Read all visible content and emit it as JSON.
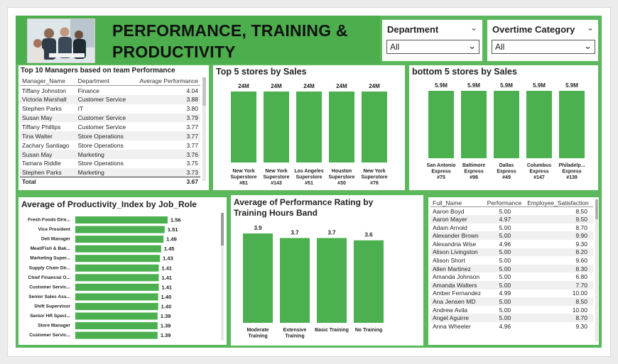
{
  "header": {
    "title_line1": "PERFORMANCE, TRAINING &",
    "title_line2": "PRODUCTIVITY"
  },
  "slicers": {
    "department": {
      "label": "Department",
      "value": "All"
    },
    "overtime": {
      "label": "Overtime Category",
      "value": "All"
    }
  },
  "managers": {
    "title": "Top 10 Managers based on team Performance",
    "columns": [
      "Manager_Name",
      "Department",
      "Average Performance"
    ],
    "rows": [
      [
        "Tiffany Johnston",
        "Finance",
        "4.04"
      ],
      [
        "Victoria Marshall",
        "Customer Service",
        "3.88"
      ],
      [
        "Stephen Parks",
        "IT",
        "3.80"
      ],
      [
        "Susan May",
        "Customer Service",
        "3.79"
      ],
      [
        "Tiffany Phillips",
        "Customer Service",
        "3.77"
      ],
      [
        "Tina Walter",
        "Store Operations",
        "3.77"
      ],
      [
        "Zachary Santiago",
        "Store Operations",
        "3.77"
      ],
      [
        "Susan May",
        "Marketing",
        "3.76"
      ],
      [
        "Tamara Riddle",
        "Store Operations",
        "3.75"
      ],
      [
        "Stephen Parks",
        "Marketing",
        "3.73"
      ]
    ],
    "total_label": "Total",
    "total_value": "3.67"
  },
  "employees": {
    "columns": [
      "Full_Name",
      "Performance",
      "Employee_Satisfaction"
    ],
    "rows": [
      [
        "Aaron Boyd",
        "5.00",
        "8.50"
      ],
      [
        "Aaron Mayer",
        "4.97",
        "9.50"
      ],
      [
        "Adam Arnold",
        "5.00",
        "8.70"
      ],
      [
        "Alexander Brown",
        "5.00",
        "9.90"
      ],
      [
        "Alexandria Wise",
        "4.96",
        "9.30"
      ],
      [
        "Alison Livingston",
        "5.00",
        "8.20"
      ],
      [
        "Alison Short",
        "5.00",
        "9.60"
      ],
      [
        "Allen Martinez",
        "5.00",
        "8.30"
      ],
      [
        "Amanda Johnson",
        "5.00",
        "6.80"
      ],
      [
        "Amanda Walters",
        "5.00",
        "7.70"
      ],
      [
        "Amber Fernandez",
        "4.99",
        "10.00"
      ],
      [
        "Ana Jensen MD",
        "5.00",
        "8.50"
      ],
      [
        "Andrew Avila",
        "5.00",
        "10.00"
      ],
      [
        "Angel Aguirre",
        "5.00",
        "8.70"
      ],
      [
        "Anna Wheeler",
        "4.96",
        "9.30"
      ]
    ]
  },
  "chart_data": [
    {
      "id": "top5",
      "type": "bar",
      "title": "Top 5 stores by Sales",
      "categories": [
        "New York Superstore #81",
        "New York Superstore #143",
        "Los Angeles Superstore #51",
        "Houston Superstore #30",
        "New York Superstore #76"
      ],
      "category_lines": [
        [
          "New York",
          "Superstore",
          "#81"
        ],
        [
          "New York",
          "Superstore",
          "#143"
        ],
        [
          "Los Angeles",
          "Superstore",
          "#51"
        ],
        [
          "Houston",
          "Superstore",
          "#30"
        ],
        [
          "New York",
          "Superstore",
          "#76"
        ]
      ],
      "values": [
        24,
        24,
        24,
        24,
        24
      ],
      "labels": [
        "24M",
        "24M",
        "24M",
        "24M",
        "24M"
      ],
      "color": "#4cb050"
    },
    {
      "id": "bottom5",
      "type": "bar",
      "title": "bottom 5 stores by Sales",
      "categories": [
        "San Antonio Express #75",
        "Baltimore Express #98",
        "Dallas Express #49",
        "Columbus Express #147",
        "Philadelp... Express #139"
      ],
      "category_lines": [
        [
          "San Antonio",
          "Express",
          "#75"
        ],
        [
          "Baltimore",
          "Express",
          "#98"
        ],
        [
          "Dallas",
          "Express",
          "#49"
        ],
        [
          "Columbus",
          "Express",
          "#147"
        ],
        [
          "Philadelp...",
          "Express",
          "#139"
        ]
      ],
      "values": [
        5.9,
        5.9,
        5.9,
        5.9,
        5.9
      ],
      "labels": [
        "5.9M",
        "5.9M",
        "5.9M",
        "5.9M",
        "5.9M"
      ],
      "color": "#4cb050"
    },
    {
      "id": "productivity",
      "type": "bar",
      "orientation": "horizontal",
      "title": "Average of Productivity_Index by Job_Role",
      "categories": [
        "Fresh Foods Dire...",
        "Vice President",
        "Deli Manager",
        "Meat/Fish & Bak...",
        "Marketing Super...",
        "Supply Chain Dir...",
        "Chief Financial O...",
        "Customer Servic...",
        "Senior Sales Ass...",
        "Shift Supervisor",
        "Senior HR Speci...",
        "Store Manager",
        "Customer Servic..."
      ],
      "values": [
        1.56,
        1.51,
        1.49,
        1.45,
        1.43,
        1.41,
        1.41,
        1.41,
        1.4,
        1.4,
        1.39,
        1.39,
        1.39
      ],
      "labels": [
        "1.56",
        "1.51",
        "1.49",
        "1.45",
        "1.43",
        "1.41",
        "1.41",
        "1.41",
        "1.40",
        "1.40",
        "1.39",
        "1.39",
        "1.39"
      ],
      "color": "#4cb050"
    },
    {
      "id": "training",
      "type": "bar",
      "title": "Average of Performance Rating by Training Hours Band",
      "title_lines": [
        "Average of Performance Rating by",
        "Training Hours Band"
      ],
      "categories": [
        "Moderate Training",
        "Extensive Training",
        "Basic Training",
        "No Training"
      ],
      "category_lines": [
        [
          "Moderate",
          "Training"
        ],
        [
          "Extensive",
          "Training"
        ],
        [
          "Basic Training"
        ],
        [
          "No Training"
        ]
      ],
      "values": [
        3.9,
        3.7,
        3.7,
        3.6
      ],
      "labels": [
        "3.9",
        "3.7",
        "3.7",
        "3.6"
      ],
      "color": "#4cb050"
    }
  ]
}
